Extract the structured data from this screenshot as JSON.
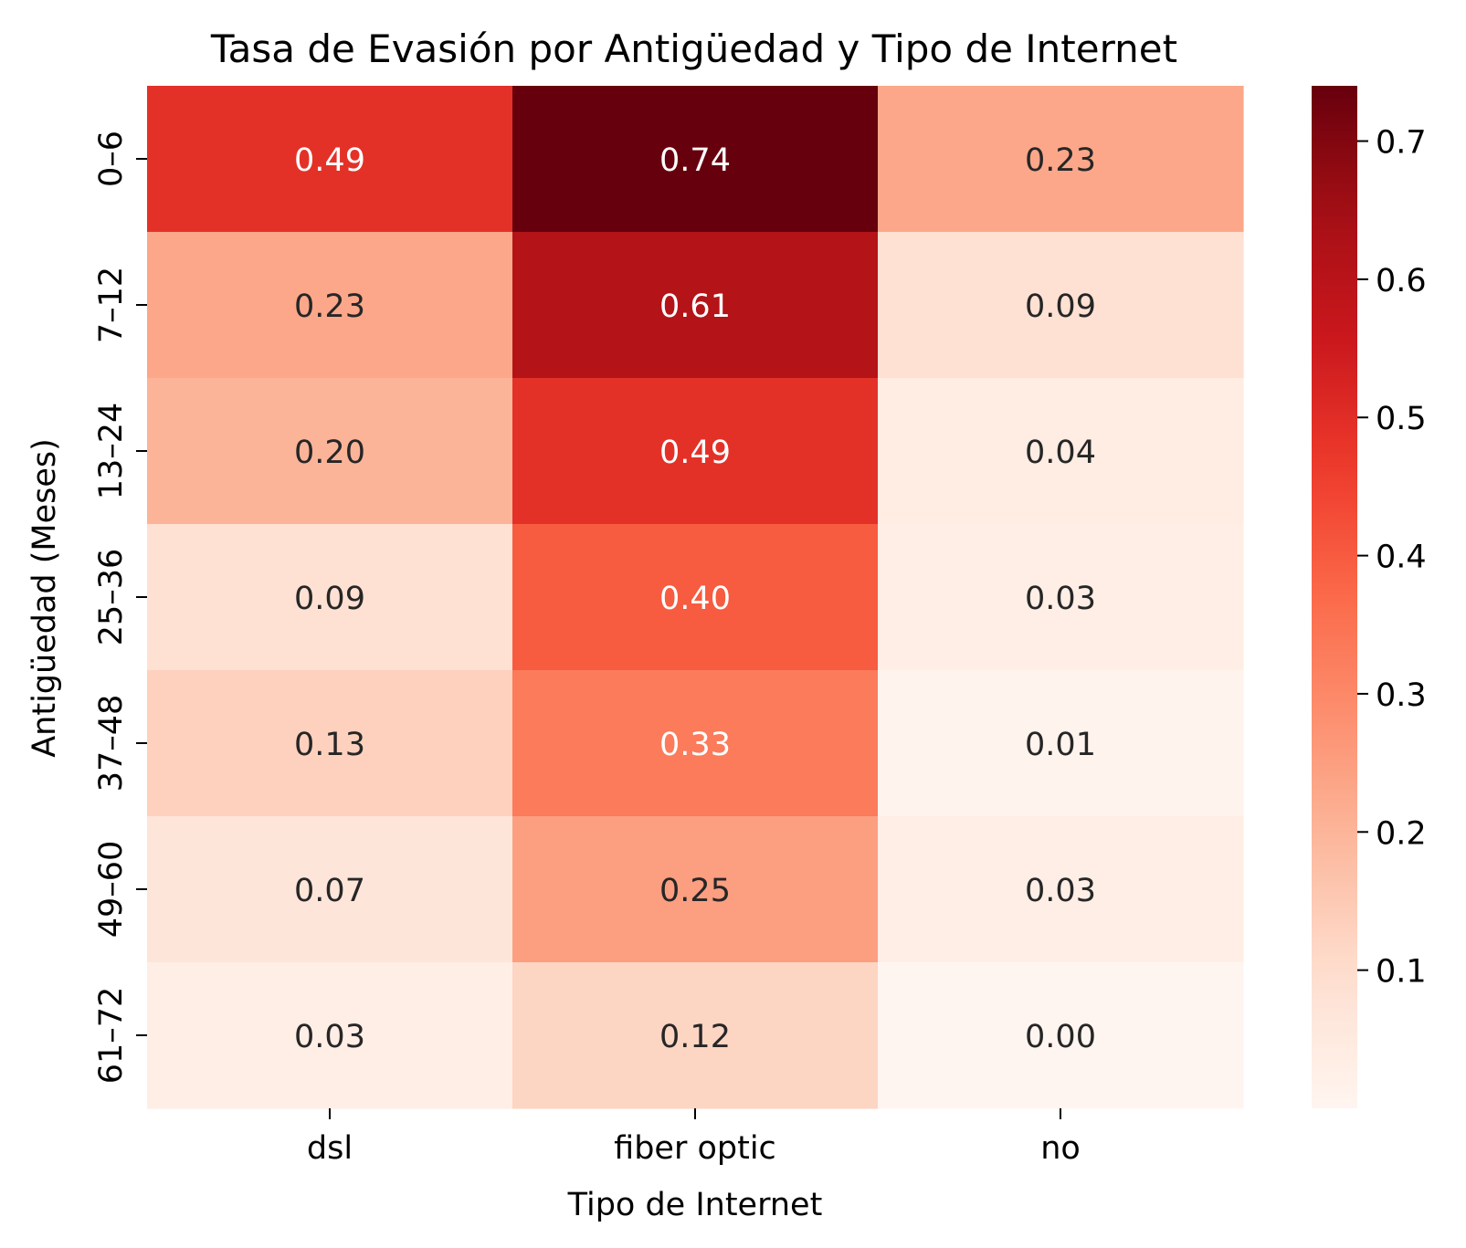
{
  "chart_data": {
    "type": "heatmap",
    "title": "Tasa de Evasión por Antigüedad y Tipo de Internet",
    "xlabel": "Tipo de Internet",
    "ylabel": "Antigüedad (Meses)",
    "x_categories": [
      "dsl",
      "fiber optic",
      "no"
    ],
    "y_categories": [
      "0–6",
      "7–12",
      "13–24",
      "25–36",
      "37–48",
      "49–60",
      "61–72"
    ],
    "values": [
      [
        0.49,
        0.74,
        0.23
      ],
      [
        0.23,
        0.61,
        0.09
      ],
      [
        0.2,
        0.49,
        0.04
      ],
      [
        0.09,
        0.4,
        0.03
      ],
      [
        0.13,
        0.33,
        0.01
      ],
      [
        0.07,
        0.25,
        0.03
      ],
      [
        0.03,
        0.12,
        0.0
      ]
    ],
    "value_labels": [
      [
        "0.49",
        "0.74",
        "0.23"
      ],
      [
        "0.23",
        "0.61",
        "0.09"
      ],
      [
        "0.20",
        "0.49",
        "0.04"
      ],
      [
        "0.09",
        "0.40",
        "0.03"
      ],
      [
        "0.13",
        "0.33",
        "0.01"
      ],
      [
        "0.07",
        "0.25",
        "0.03"
      ],
      [
        "0.03",
        "0.12",
        "0.00"
      ]
    ],
    "colormap": "Reds",
    "colorbar": {
      "range": [
        0.0,
        0.74
      ],
      "ticks": [
        0.1,
        0.2,
        0.3,
        0.4,
        0.5,
        0.6,
        0.7
      ],
      "tick_labels": [
        "0.1",
        "0.2",
        "0.3",
        "0.4",
        "0.5",
        "0.6",
        "0.7"
      ]
    },
    "colors": {
      "low": "#fff5f0",
      "high": "#67000d",
      "text_dark": "#262626",
      "text_light": "#ffffff"
    },
    "grid": false,
    "legend": "colorbar-right"
  }
}
